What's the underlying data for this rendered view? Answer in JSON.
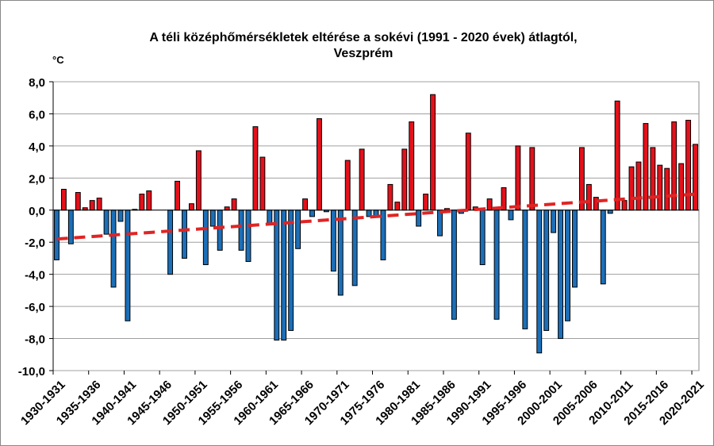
{
  "chart_data": {
    "type": "bar",
    "title": [
      "A téli középhőmérsékletek eltérése a sokévi (1991 - 2020 évek) átlagtól,",
      "Veszprém"
    ],
    "y_unit": "°C",
    "categories": [
      "1930-1931",
      null,
      null,
      null,
      null,
      "1935-1936",
      null,
      null,
      null,
      null,
      "1940-1941",
      null,
      null,
      null,
      null,
      "1945-1946",
      null,
      null,
      null,
      null,
      "1950-1951",
      null,
      null,
      null,
      null,
      "1955-1956",
      null,
      null,
      null,
      null,
      "1960-1961",
      null,
      null,
      null,
      null,
      "1965-1966",
      null,
      null,
      null,
      null,
      "1970-1971",
      null,
      null,
      null,
      null,
      "1975-1976",
      null,
      null,
      null,
      null,
      "1980-1981",
      null,
      null,
      null,
      null,
      "1985-1986",
      null,
      null,
      null,
      null,
      "1990-1991",
      null,
      null,
      null,
      null,
      "1995-1996",
      null,
      null,
      null,
      null,
      "2000-2001",
      null,
      null,
      null,
      null,
      "2005-2006",
      null,
      null,
      null,
      null,
      "2010-2011",
      null,
      null,
      null,
      null,
      "2015-2016",
      null,
      null,
      null,
      null,
      "2020-2021"
    ],
    "values": [
      -3.1,
      1.3,
      -2.1,
      1.1,
      0.15,
      0.6,
      0.75,
      -1.5,
      -4.8,
      -0.7,
      -6.9,
      0.05,
      1.0,
      1.2,
      null,
      null,
      -4.0,
      1.8,
      -3.0,
      0.4,
      3.7,
      -3.4,
      -1.0,
      -2.5,
      0.2,
      0.7,
      -2.5,
      -3.2,
      5.2,
      3.3,
      -0.8,
      -8.1,
      -8.1,
      -7.5,
      -2.4,
      0.7,
      -0.4,
      5.7,
      -0.1,
      -3.8,
      -5.3,
      3.1,
      -4.7,
      3.8,
      -0.4,
      -0.4,
      -3.1,
      1.6,
      0.5,
      3.8,
      5.5,
      -1.0,
      1.0,
      7.2,
      -1.6,
      0.1,
      -6.8,
      -0.2,
      4.8,
      0.2,
      -3.4,
      0.7,
      -6.8,
      1.4,
      -0.6,
      4.0,
      -7.4,
      3.9,
      -8.9,
      -7.5,
      -1.4,
      -8.0,
      -6.9,
      -4.8,
      3.9,
      1.6,
      0.8,
      -4.6,
      -0.2,
      6.8,
      0.6,
      2.7,
      3.0,
      5.4,
      3.9,
      2.8,
      2.6,
      5.5,
      2.9,
      5.6,
      4.1
    ],
    "positive_color": "#e3111b",
    "negative_color": "#1c6fb8",
    "trend": {
      "start": -1.8,
      "end": 1.0,
      "color": "#e02424",
      "dashed": true
    },
    "ylim": [
      -10,
      8
    ],
    "yticks": [
      {
        "value": -10,
        "label": "-10,0"
      },
      {
        "value": -8,
        "label": "-8,0"
      },
      {
        "value": -6,
        "label": "-6,0"
      },
      {
        "value": -4,
        "label": "-4,0"
      },
      {
        "value": -2,
        "label": "-2,0"
      },
      {
        "value": 0,
        "label": "0,0"
      },
      {
        "value": 2,
        "label": "2,0"
      },
      {
        "value": 4,
        "label": "4,0"
      },
      {
        "value": 6,
        "label": "6,0"
      },
      {
        "value": 8,
        "label": "8,0"
      }
    ],
    "grid": true
  }
}
